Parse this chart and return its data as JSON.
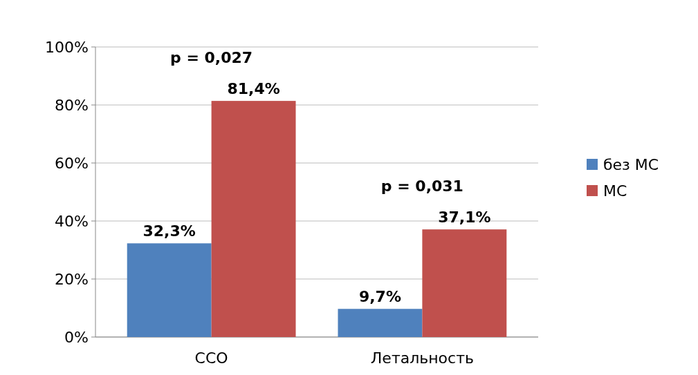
{
  "chart_data": {
    "type": "bar",
    "categories": [
      "ССО",
      "Летальность"
    ],
    "series": [
      {
        "name": "без МС",
        "color": "#4f81bd",
        "values": [
          32.3,
          9.7
        ],
        "value_labels": [
          "32,3%",
          "9,7%"
        ]
      },
      {
        "name": "МС",
        "color": "#c0504d",
        "values": [
          81.4,
          37.1
        ],
        "value_labels": [
          "81,4%",
          "37,1%"
        ]
      }
    ],
    "ylim": [
      0,
      100
    ],
    "yticks": [
      {
        "value": 0,
        "label": "0%"
      },
      {
        "value": 20,
        "label": "20%"
      },
      {
        "value": 40,
        "label": "40%"
      },
      {
        "value": 60,
        "label": "60%"
      },
      {
        "value": 80,
        "label": "80%"
      },
      {
        "value": 100,
        "label": "100%"
      }
    ],
    "grid": "y",
    "legend": "right",
    "annotations": [
      "p = 0,027",
      "p = 0,031"
    ]
  }
}
